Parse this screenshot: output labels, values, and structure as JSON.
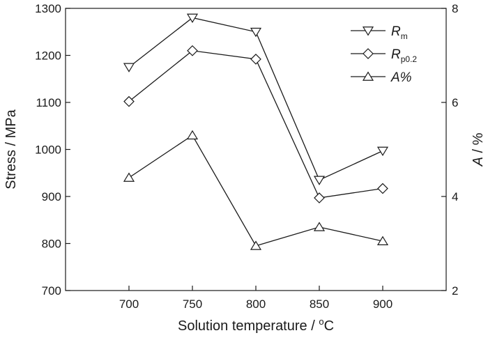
{
  "chart_data": {
    "type": "line",
    "x": [
      700,
      750,
      800,
      850,
      900
    ],
    "x_tick_labels": [
      "700",
      "750",
      "800",
      "850",
      "900"
    ],
    "xlim": [
      650,
      950
    ],
    "xlabel": "Solution temperature / °C",
    "ylabel_left": "Stress / MPa",
    "ylim_left": [
      700,
      1300
    ],
    "y_left_tick_labels": [
      "700",
      "800",
      "900",
      "1000",
      "1100",
      "1200",
      "1300"
    ],
    "ylabel_right_italic": "A",
    "ylabel_right_rest": " / %",
    "ylim_right": [
      2,
      8
    ],
    "y_right_tick_labels": [
      "2",
      "4",
      "6",
      "8"
    ],
    "grid": false,
    "legend_position": "top-right",
    "series": [
      {
        "name": "Rm",
        "legend_main": "R",
        "legend_sub": "m",
        "axis": "left",
        "marker": "triangle-down",
        "values": [
          1175,
          1280,
          1250,
          935,
          997
        ]
      },
      {
        "name": "Rp0.2",
        "legend_main": "R",
        "legend_sub": "p0.2",
        "axis": "left",
        "marker": "diamond",
        "values": [
          1102,
          1210,
          1192,
          897,
          917
        ]
      },
      {
        "name": "A%",
        "legend_main": "A%",
        "legend_sub": "",
        "axis": "right",
        "marker": "triangle-up",
        "values": [
          4.4,
          5.3,
          2.95,
          3.35,
          3.05
        ]
      }
    ],
    "colors": {
      "line": "#1a1a1a",
      "marker_fill": "#ffffff"
    }
  }
}
